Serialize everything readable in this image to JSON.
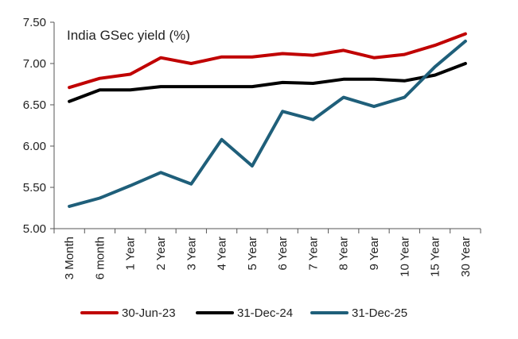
{
  "chart_data": {
    "type": "line",
    "title": "India GSec yield (%)",
    "xlabel": "",
    "ylabel": "",
    "categories": [
      "3 Month",
      "6 month",
      "1 Year",
      "2 Year",
      "3 Year",
      "4 Year",
      "5 Year",
      "6 Year",
      "7 Year",
      "8 Year",
      "9 Year",
      "10 Year",
      "15 Year",
      "30 Year"
    ],
    "y_tick_labels": [
      "5.00",
      "5.50",
      "6.00",
      "6.50",
      "7.00",
      "7.50"
    ],
    "ylim": [
      5.0,
      7.5
    ],
    "grid": false,
    "legend_position": "bottom",
    "series": [
      {
        "name": "30-Jun-23",
        "color": "#c00000",
        "values": [
          6.71,
          6.82,
          6.87,
          7.07,
          7.0,
          7.08,
          7.08,
          7.12,
          7.1,
          7.16,
          7.07,
          7.11,
          7.22,
          7.36
        ]
      },
      {
        "name": "31-Dec-24",
        "color": "#000000",
        "values": [
          6.54,
          6.68,
          6.68,
          6.72,
          6.72,
          6.72,
          6.72,
          6.77,
          6.76,
          6.81,
          6.81,
          6.79,
          6.86,
          7.0
        ]
      },
      {
        "name": "31-Dec-25",
        "color": "#1f5f7a",
        "values": [
          5.27,
          5.37,
          5.52,
          5.68,
          5.54,
          6.08,
          5.76,
          6.42,
          6.32,
          6.59,
          6.48,
          6.59,
          6.96,
          7.27
        ]
      }
    ]
  }
}
